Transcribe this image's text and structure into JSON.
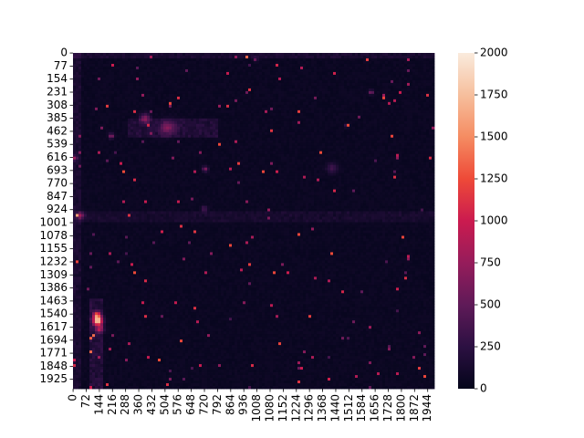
{
  "chart_data": {
    "type": "heatmap",
    "title": "",
    "xlabel": "",
    "ylabel": "",
    "matrix_size": 1981,
    "x_tick_labels": [
      "0",
      "72",
      "144",
      "216",
      "288",
      "360",
      "432",
      "504",
      "576",
      "648",
      "720",
      "792",
      "864",
      "936",
      "1008",
      "1080",
      "1152",
      "1224",
      "1296",
      "1368",
      "1440",
      "1512",
      "1584",
      "1656",
      "1728",
      "1800",
      "1872",
      "1944"
    ],
    "y_tick_labels": [
      "0",
      "77",
      "154",
      "231",
      "308",
      "385",
      "462",
      "539",
      "616",
      "693",
      "770",
      "847",
      "924",
      "1001",
      "1078",
      "1155",
      "1232",
      "1309",
      "1386",
      "1463",
      "1540",
      "1617",
      "1694",
      "1771",
      "1848",
      "1925"
    ],
    "colorbar": {
      "min": 0,
      "max": 2000,
      "tick_labels": [
        "0",
        "250",
        "500",
        "750",
        "1000",
        "1250",
        "1500",
        "1750",
        "2000"
      ],
      "colormap": "rocket",
      "stops": [
        "#03051a",
        "#2c1042",
        "#5f1a58",
        "#961c5b",
        "#cb1b4f",
        "#ee4a38",
        "#f58c62",
        "#f6bf9d",
        "#faebdd"
      ]
    },
    "background_value": 30,
    "hotspots": [
      {
        "x": 135,
        "y": 1580,
        "value": 1700,
        "spread": 18
      },
      {
        "x": 130,
        "y": 1545,
        "value": 1100,
        "spread": 14
      },
      {
        "x": 145,
        "y": 1630,
        "value": 700,
        "spread": 16
      },
      {
        "x": 40,
        "y": 960,
        "value": 650,
        "spread": 14
      },
      {
        "x": 395,
        "y": 385,
        "value": 600,
        "spread": 18
      },
      {
        "x": 210,
        "y": 490,
        "value": 650,
        "spread": 10
      },
      {
        "x": 725,
        "y": 685,
        "value": 600,
        "spread": 10
      },
      {
        "x": 1635,
        "y": 232,
        "value": 700,
        "spread": 8
      },
      {
        "x": 1500,
        "y": 432,
        "value": 900,
        "spread": 5
      },
      {
        "x": 10,
        "y": 620,
        "value": 600,
        "spread": 9
      },
      {
        "x": 520,
        "y": 440,
        "value": 450,
        "spread": 30
      },
      {
        "x": 1000,
        "y": 38,
        "value": 500,
        "spread": 8
      },
      {
        "x": 720,
        "y": 920,
        "value": 350,
        "spread": 12
      },
      {
        "x": 1420,
        "y": 680,
        "value": 300,
        "spread": 20
      }
    ],
    "bands": [
      {
        "x": [
          0,
          40
        ],
        "y": [
          0,
          1981
        ],
        "value": 110
      },
      {
        "x": [
          0,
          1981
        ],
        "y": [
          0,
          40
        ],
        "value": 110
      },
      {
        "x": [
          90,
          170
        ],
        "y": [
          1450,
          1981
        ],
        "value": 180
      },
      {
        "x": [
          0,
          1981
        ],
        "y": [
          930,
          1000
        ],
        "value": 90
      },
      {
        "x": [
          300,
          800
        ],
        "y": [
          380,
          500
        ],
        "value": 160
      }
    ]
  }
}
